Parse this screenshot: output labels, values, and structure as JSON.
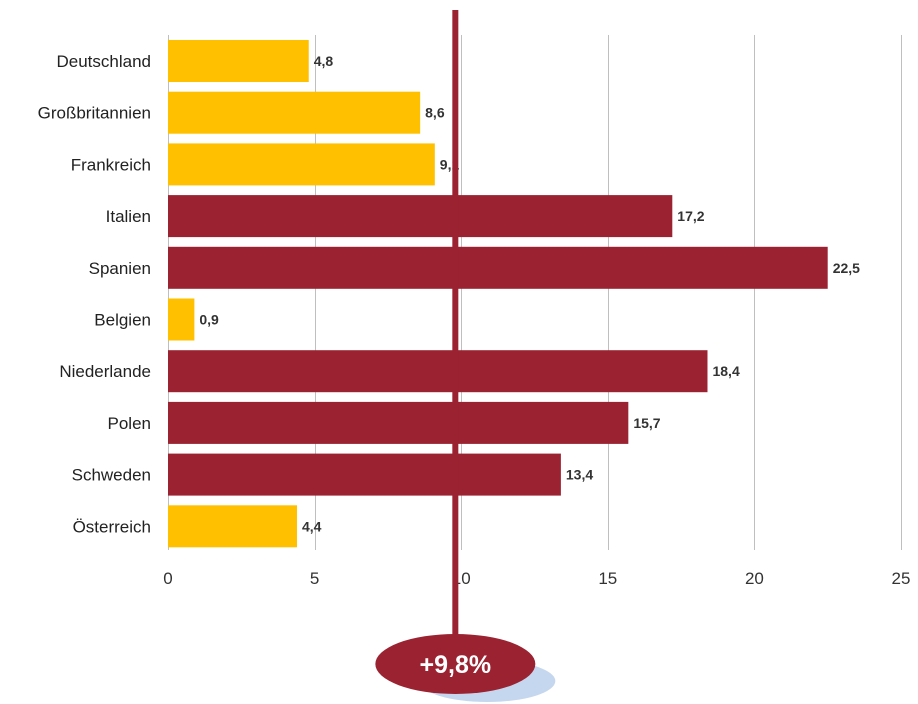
{
  "chart_data": {
    "type": "bar",
    "orientation": "horizontal",
    "categories": [
      "Deutschland",
      "Großbritannien",
      "Frankreich",
      "Italien",
      "Spanien",
      "Belgien",
      "Niederlande",
      "Polen",
      "Schweden",
      "Österreich"
    ],
    "values": [
      4.8,
      8.6,
      9.1,
      17.2,
      22.5,
      0.9,
      18.4,
      15.7,
      13.4,
      4.4
    ],
    "value_labels": [
      "4,8",
      "8,6",
      "9,1",
      "17,2",
      "22,5",
      "0,9",
      "18,4",
      "15,7",
      "13,4",
      "4,4"
    ],
    "xlim": [
      0,
      25
    ],
    "xticks": [
      0,
      5,
      10,
      15,
      20,
      25
    ],
    "xtick_labels": [
      "0",
      "5",
      "10",
      "15",
      "20",
      "25"
    ],
    "grid": "vertical",
    "legend": "none",
    "reference_line": {
      "value": 9.8,
      "label": "+9,8%"
    },
    "colors": {
      "below_reference": "#FFC000",
      "above_reference": "#9B2230",
      "reference_line": "#9B2230",
      "badge_shadow": "#C5D7EE",
      "grid": "#BFBFBF"
    }
  }
}
